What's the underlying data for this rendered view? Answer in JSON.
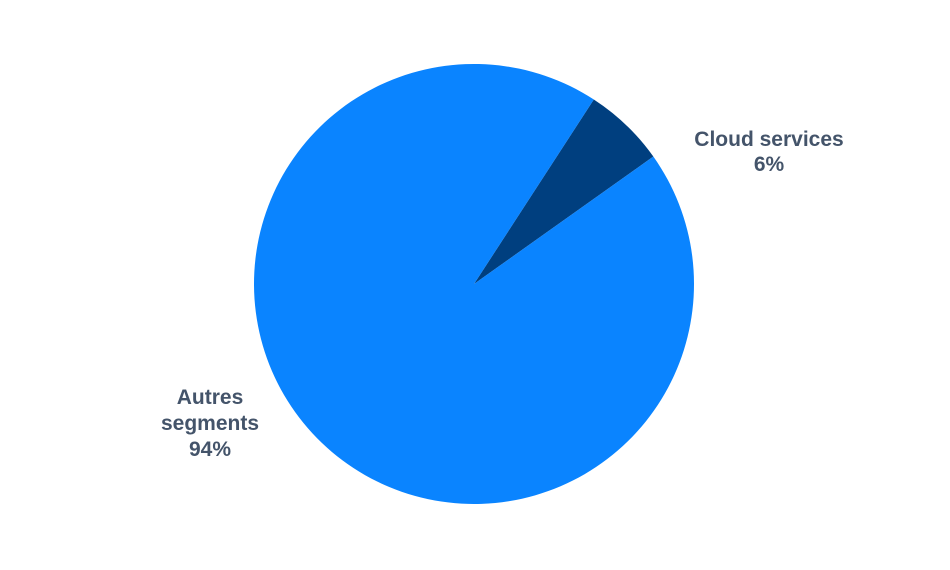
{
  "chart_data": {
    "type": "pie",
    "title": "",
    "slices": [
      {
        "label_lines": [
          "Cloud services"
        ],
        "percent_label": "6%",
        "value": 6,
        "color": "#003f7f"
      },
      {
        "label_lines": [
          "Autres",
          "segments"
        ],
        "percent_label": "94%",
        "value": 94,
        "color": "#0a84ff"
      }
    ],
    "start_angle_deg": 57,
    "direction": "clockwise",
    "legend": "none",
    "label_color": "#44546a"
  }
}
